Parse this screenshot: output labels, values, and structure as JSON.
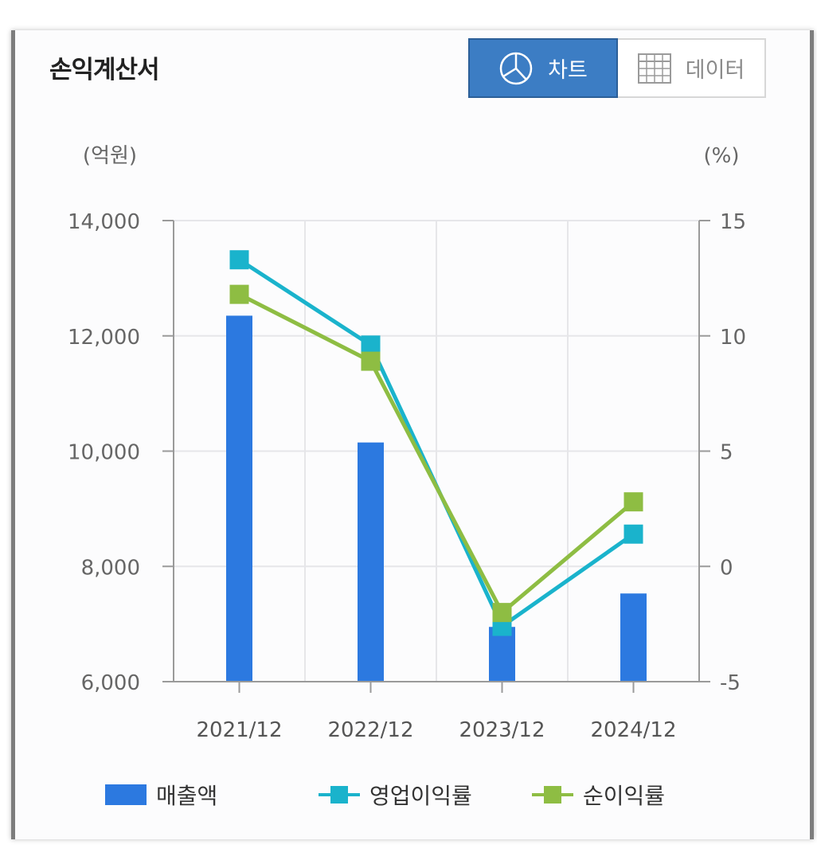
{
  "header": {
    "title": "손익계산서",
    "tab_chart": "차트",
    "tab_data": "데이터",
    "tab_chart_icon": "pie-chart-icon",
    "tab_data_icon": "table-grid-icon"
  },
  "colors": {
    "bar": "#2c79e0",
    "operating_margin": "#1ab3cc",
    "net_margin": "#8ebd43",
    "active_tab": "#3c7dc4"
  },
  "chart_data": {
    "type": "bar",
    "categories": [
      "2021/12",
      "2022/12",
      "2023/12",
      "2024/12"
    ],
    "y_left_unit": "(억원)",
    "y_right_unit": "(%)",
    "y_left_ticks": [
      "14,000",
      "12,000",
      "10,000",
      "8,000",
      "6,000"
    ],
    "y_right_ticks": [
      "15",
      "10",
      "5",
      "0",
      "-5"
    ],
    "ylim_left": [
      6000,
      14000
    ],
    "ylim_right": [
      -5,
      15
    ],
    "grid": true,
    "legend_position": "bottom",
    "series": [
      {
        "name": "매출액",
        "type": "bar",
        "axis": "left",
        "values": [
          12350,
          10150,
          6950,
          7530
        ]
      },
      {
        "name": "영업이익률",
        "type": "line",
        "axis": "right",
        "values": [
          13.3,
          9.6,
          -2.6,
          1.4
        ]
      },
      {
        "name": "순이익률",
        "type": "line",
        "axis": "right",
        "values": [
          11.8,
          8.9,
          -2.0,
          2.8
        ]
      }
    ]
  }
}
